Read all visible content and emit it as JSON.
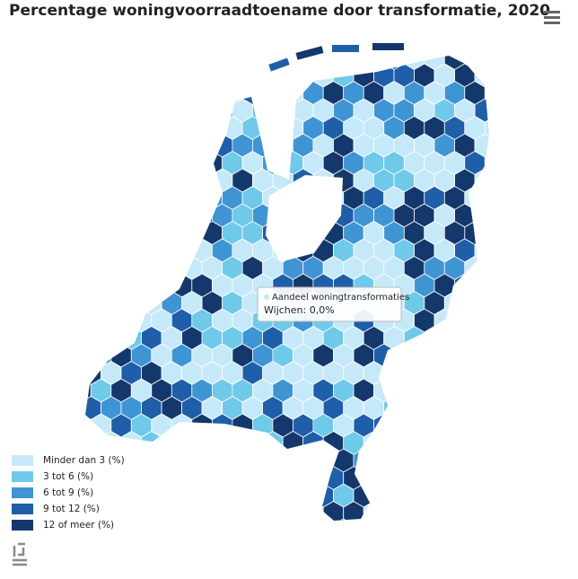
{
  "title": "Percentage woningvoorraadtoename door transformatie, 2020",
  "legend": [
    {
      "label": "Minder dan 3 (%)",
      "color": "#c6e9fa"
    },
    {
      "label": "3 tot 6 (%)",
      "color": "#6fc9e8"
    },
    {
      "label": "6 tot 9 (%)",
      "color": "#3f95d4"
    },
    {
      "label": "9 tot 12 (%)",
      "color": "#1f5ea8"
    },
    {
      "label": "12 of meer (%)",
      "color": "#14386b"
    }
  ],
  "tooltip": {
    "series": "Aandeel woningtransformaties",
    "text": "Wijchen: 0,0%"
  }
}
